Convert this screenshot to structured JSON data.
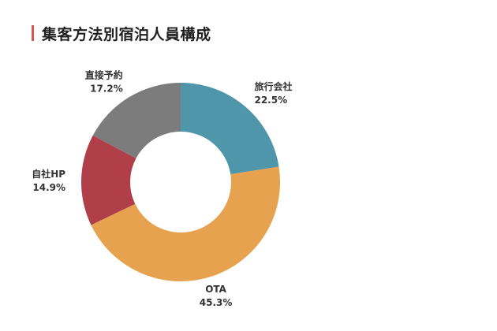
{
  "chart_data": {
    "type": "pie",
    "title": "集客方法別宿泊人員構成",
    "slices": [
      {
        "label": "旅行会社",
        "value": 22.5,
        "value_label": "22.5%",
        "color": "#5096ab"
      },
      {
        "label": "OTA",
        "value": 45.3,
        "value_label": "45.3%",
        "color": "#e6a24f"
      },
      {
        "label": "自社HP",
        "value": 14.9,
        "value_label": "14.9%",
        "color": "#b13f4a"
      },
      {
        "label": "直接予約",
        "value": 17.2,
        "value_label": "17.2%",
        "color": "#7c7c7c"
      }
    ],
    "donut": true,
    "start_angle_deg": 0,
    "direction": "clockwise",
    "accent_color": "#d9534f"
  }
}
